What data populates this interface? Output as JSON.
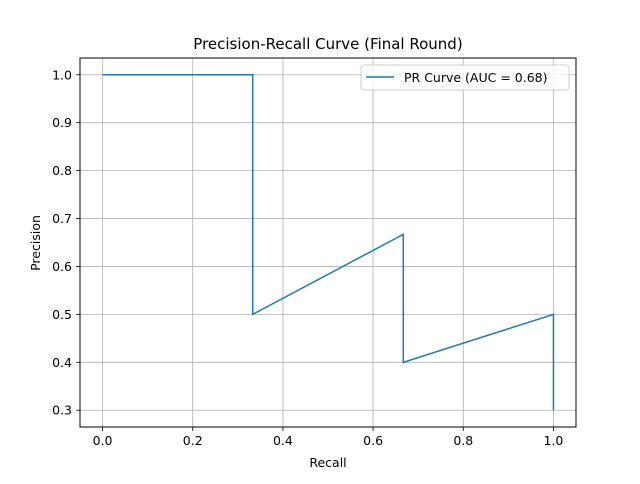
{
  "chart_data": {
    "type": "line",
    "title": "Precision-Recall Curve (Final Round)",
    "xlabel": "Recall",
    "ylabel": "Precision",
    "xlim": [
      -0.05,
      1.05
    ],
    "ylim": [
      0.265,
      1.035
    ],
    "xticks": [
      0.0,
      0.2,
      0.4,
      0.6,
      0.8,
      1.0
    ],
    "xtick_labels": [
      "0.0",
      "0.2",
      "0.4",
      "0.6",
      "0.8",
      "1.0"
    ],
    "yticks": [
      0.3,
      0.4,
      0.5,
      0.6,
      0.7,
      0.8,
      0.9,
      1.0
    ],
    "ytick_labels": [
      "0.3",
      "0.4",
      "0.5",
      "0.6",
      "0.7",
      "0.8",
      "0.9",
      "1.0"
    ],
    "grid": true,
    "legend_position": "top-right",
    "series": [
      {
        "name": "PR Curve (AUC = 0.68)",
        "color": "#1f77b4",
        "x": [
          0.0,
          0.333,
          0.333,
          0.667,
          0.667,
          1.0,
          1.0
        ],
        "y": [
          1.0,
          1.0,
          0.5,
          0.667,
          0.4,
          0.5,
          0.3
        ]
      }
    ]
  }
}
